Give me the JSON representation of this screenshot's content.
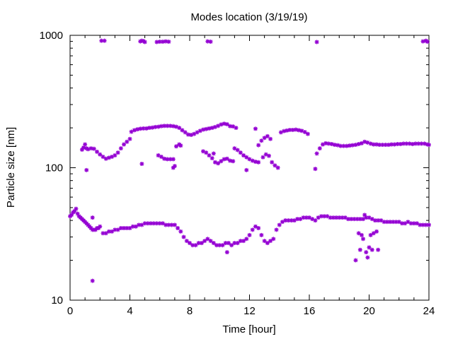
{
  "chart_data": {
    "type": "scatter",
    "title": "Modes location (3/19/19)",
    "xlabel": "Time [hour]",
    "ylabel": "Particle size [nm]",
    "xlim": [
      0,
      24
    ],
    "ylim": [
      10,
      1000
    ],
    "yscale": "log",
    "xticks": [
      0,
      4,
      8,
      12,
      16,
      20,
      24
    ],
    "yticks": [
      10,
      100,
      1000
    ],
    "xtick_labels": [
      "0",
      "4",
      "8",
      "12",
      "16",
      "20",
      "24"
    ],
    "ytick_labels": [
      "10",
      "100",
      "1000"
    ],
    "grid": false,
    "legend": "none",
    "marker_color": "#9400d3",
    "series": [
      {
        "points": [
          [
            0.0,
            43
          ],
          [
            0.1,
            44
          ],
          [
            0.2,
            46
          ],
          [
            0.3,
            47
          ],
          [
            0.4,
            49
          ],
          [
            0.5,
            45
          ],
          [
            0.6,
            43
          ],
          [
            0.7,
            42
          ],
          [
            0.8,
            41
          ],
          [
            0.9,
            40
          ],
          [
            1.0,
            39
          ],
          [
            1.1,
            38
          ],
          [
            1.2,
            37
          ],
          [
            1.3,
            36
          ],
          [
            1.4,
            35
          ],
          [
            1.5,
            34
          ],
          [
            1.6,
            34
          ],
          [
            1.7,
            34
          ],
          [
            1.8,
            35
          ],
          [
            1.9,
            35
          ],
          [
            2.0,
            36
          ],
          [
            2.2,
            32
          ],
          [
            2.4,
            32
          ],
          [
            2.6,
            33
          ],
          [
            2.8,
            33
          ],
          [
            3.0,
            34
          ],
          [
            3.2,
            34
          ],
          [
            3.4,
            35
          ],
          [
            3.6,
            35
          ],
          [
            3.8,
            35
          ],
          [
            4.0,
            35
          ],
          [
            4.2,
            36
          ],
          [
            4.4,
            36
          ],
          [
            4.6,
            37
          ],
          [
            4.8,
            37
          ],
          [
            5.0,
            38
          ],
          [
            5.2,
            38
          ],
          [
            5.4,
            38
          ],
          [
            5.6,
            38
          ],
          [
            5.8,
            38
          ],
          [
            6.0,
            38
          ],
          [
            6.2,
            38
          ],
          [
            6.4,
            37
          ],
          [
            6.6,
            37
          ],
          [
            6.8,
            37
          ],
          [
            7.0,
            37
          ],
          [
            7.2,
            35
          ],
          [
            7.4,
            33
          ],
          [
            7.6,
            30
          ],
          [
            7.8,
            28
          ],
          [
            8.0,
            27
          ],
          [
            8.2,
            26
          ],
          [
            8.4,
            26
          ],
          [
            8.6,
            27
          ],
          [
            8.8,
            27
          ],
          [
            9.0,
            28
          ],
          [
            9.2,
            29
          ],
          [
            9.4,
            28
          ],
          [
            9.6,
            27
          ],
          [
            9.8,
            26
          ],
          [
            10.0,
            26
          ],
          [
            10.2,
            26
          ],
          [
            10.4,
            27
          ],
          [
            10.6,
            27
          ],
          [
            10.8,
            26
          ],
          [
            11.0,
            27
          ],
          [
            11.2,
            27
          ],
          [
            11.4,
            28
          ],
          [
            11.6,
            28
          ],
          [
            11.8,
            29
          ],
          [
            12.0,
            31
          ],
          [
            12.2,
            34
          ],
          [
            12.4,
            36
          ],
          [
            12.6,
            35
          ],
          [
            12.8,
            31
          ],
          [
            13.0,
            28
          ],
          [
            13.2,
            27
          ],
          [
            13.4,
            28
          ],
          [
            13.6,
            29
          ],
          [
            13.8,
            34
          ],
          [
            14.0,
            37
          ],
          [
            14.2,
            39
          ],
          [
            14.4,
            40
          ],
          [
            14.6,
            40
          ],
          [
            14.8,
            40
          ],
          [
            15.0,
            40
          ],
          [
            15.2,
            41
          ],
          [
            15.4,
            41
          ],
          [
            15.6,
            42
          ],
          [
            15.8,
            42
          ],
          [
            16.0,
            42
          ],
          [
            16.2,
            41
          ],
          [
            16.4,
            40
          ],
          [
            16.6,
            42
          ],
          [
            16.8,
            43
          ],
          [
            17.0,
            43
          ],
          [
            17.2,
            43
          ],
          [
            17.4,
            42
          ],
          [
            17.6,
            42
          ],
          [
            17.8,
            42
          ],
          [
            18.0,
            42
          ],
          [
            18.2,
            42
          ],
          [
            18.4,
            42
          ],
          [
            18.6,
            41
          ],
          [
            18.8,
            41
          ],
          [
            19.0,
            41
          ],
          [
            19.2,
            41
          ],
          [
            19.4,
            41
          ],
          [
            19.6,
            41
          ],
          [
            19.8,
            42
          ],
          [
            20.0,
            42
          ],
          [
            20.2,
            41
          ],
          [
            20.4,
            40
          ],
          [
            20.6,
            40
          ],
          [
            20.8,
            40
          ],
          [
            21.0,
            39
          ],
          [
            21.2,
            39
          ],
          [
            21.4,
            39
          ],
          [
            21.6,
            39
          ],
          [
            21.8,
            39
          ],
          [
            22.0,
            39
          ],
          [
            22.2,
            38
          ],
          [
            22.4,
            38
          ],
          [
            22.6,
            39
          ],
          [
            22.8,
            38
          ],
          [
            23.0,
            38
          ],
          [
            23.2,
            38
          ],
          [
            23.4,
            37
          ],
          [
            23.6,
            37
          ],
          [
            23.8,
            37
          ],
          [
            24.0,
            37
          ],
          [
            1.5,
            14
          ],
          [
            10.5,
            23
          ],
          [
            19.7,
            44
          ],
          [
            1.5,
            42
          ],
          [
            19.1,
            20
          ],
          [
            19.3,
            32
          ],
          [
            19.4,
            24
          ],
          [
            19.5,
            31
          ],
          [
            19.6,
            29
          ],
          [
            19.8,
            23
          ],
          [
            19.9,
            21
          ],
          [
            20.0,
            25
          ],
          [
            20.2,
            24
          ],
          [
            20.3,
            32
          ],
          [
            20.5,
            33
          ],
          [
            20.6,
            24
          ],
          [
            20.1,
            31
          ],
          [
            0.8,
            137
          ],
          [
            0.9,
            142
          ],
          [
            1.0,
            150
          ],
          [
            1.1,
            140
          ],
          [
            1.2,
            138
          ],
          [
            1.4,
            140
          ],
          [
            1.6,
            139
          ],
          [
            1.8,
            132
          ],
          [
            2.0,
            126
          ],
          [
            2.2,
            121
          ],
          [
            2.4,
            117
          ],
          [
            2.6,
            119
          ],
          [
            2.8,
            121
          ],
          [
            3.0,
            124
          ],
          [
            3.2,
            130
          ],
          [
            3.4,
            140
          ],
          [
            3.6,
            150
          ],
          [
            3.8,
            157
          ],
          [
            4.0,
            165
          ],
          [
            4.1,
            187
          ],
          [
            4.3,
            192
          ],
          [
            4.5,
            195
          ],
          [
            4.7,
            197
          ],
          [
            4.9,
            198
          ],
          [
            5.1,
            198
          ],
          [
            5.3,
            200
          ],
          [
            5.5,
            201
          ],
          [
            5.7,
            203
          ],
          [
            5.9,
            204
          ],
          [
            6.1,
            206
          ],
          [
            6.3,
            207
          ],
          [
            6.5,
            207
          ],
          [
            6.7,
            207
          ],
          [
            6.9,
            206
          ],
          [
            7.1,
            204
          ],
          [
            7.3,
            200
          ],
          [
            7.5,
            192
          ],
          [
            7.7,
            185
          ],
          [
            7.9,
            178
          ],
          [
            8.1,
            177
          ],
          [
            8.3,
            180
          ],
          [
            8.5,
            185
          ],
          [
            8.7,
            190
          ],
          [
            8.9,
            194
          ],
          [
            9.1,
            196
          ],
          [
            9.3,
            198
          ],
          [
            9.5,
            200
          ],
          [
            9.7,
            203
          ],
          [
            9.9,
            207
          ],
          [
            10.1,
            212
          ],
          [
            10.3,
            215
          ],
          [
            10.5,
            213
          ],
          [
            10.7,
            206
          ],
          [
            10.9,
            205
          ],
          [
            11.1,
            200
          ],
          [
            1.1,
            96
          ],
          [
            4.8,
            107
          ],
          [
            6.9,
            100
          ],
          [
            7.0,
            103
          ],
          [
            5.9,
            124
          ],
          [
            6.1,
            121
          ],
          [
            6.3,
            117
          ],
          [
            6.5,
            116
          ],
          [
            6.7,
            116
          ],
          [
            6.9,
            116
          ],
          [
            7.1,
            145
          ],
          [
            7.3,
            150
          ],
          [
            7.4,
            147
          ],
          [
            8.9,
            133
          ],
          [
            9.1,
            130
          ],
          [
            9.3,
            124
          ],
          [
            9.5,
            118
          ],
          [
            9.6,
            128
          ],
          [
            9.7,
            110
          ],
          [
            9.9,
            108
          ],
          [
            10.1,
            112
          ],
          [
            10.3,
            116
          ],
          [
            10.5,
            117
          ],
          [
            10.7,
            113
          ],
          [
            10.9,
            112
          ],
          [
            11.0,
            140
          ],
          [
            11.2,
            136
          ],
          [
            11.4,
            130
          ],
          [
            11.6,
            124
          ],
          [
            11.8,
            120
          ],
          [
            12.0,
            116
          ],
          [
            12.2,
            113
          ],
          [
            12.4,
            111
          ],
          [
            12.6,
            110
          ],
          [
            11.8,
            96
          ],
          [
            12.4,
            197
          ],
          [
            12.6,
            148
          ],
          [
            12.8,
            160
          ],
          [
            13.0,
            168
          ],
          [
            13.2,
            173
          ],
          [
            13.4,
            165
          ],
          [
            12.9,
            120
          ],
          [
            13.1,
            126
          ],
          [
            13.3,
            123
          ],
          [
            13.5,
            110
          ],
          [
            13.7,
            104
          ],
          [
            13.9,
            100
          ],
          [
            14.1,
            185
          ],
          [
            14.3,
            189
          ],
          [
            14.5,
            191
          ],
          [
            14.7,
            193
          ],
          [
            14.9,
            193
          ],
          [
            15.1,
            194
          ],
          [
            15.3,
            192
          ],
          [
            15.5,
            190
          ],
          [
            15.7,
            186
          ],
          [
            15.9,
            180
          ],
          [
            16.4,
            98
          ],
          [
            16.5,
            128
          ],
          [
            16.7,
            140
          ],
          [
            16.9,
            150
          ],
          [
            17.1,
            153
          ],
          [
            17.3,
            152
          ],
          [
            17.5,
            151
          ],
          [
            17.7,
            149
          ],
          [
            17.9,
            148
          ],
          [
            18.1,
            146
          ],
          [
            18.3,
            146
          ],
          [
            18.5,
            146
          ],
          [
            18.7,
            147
          ],
          [
            18.9,
            148
          ],
          [
            19.1,
            149
          ],
          [
            19.3,
            151
          ],
          [
            19.5,
            153
          ],
          [
            19.7,
            157
          ],
          [
            19.9,
            155
          ],
          [
            20.1,
            152
          ],
          [
            20.3,
            150
          ],
          [
            20.5,
            150
          ],
          [
            20.7,
            149
          ],
          [
            20.9,
            149
          ],
          [
            21.1,
            149
          ],
          [
            21.3,
            149
          ],
          [
            21.5,
            150
          ],
          [
            21.7,
            150
          ],
          [
            21.9,
            151
          ],
          [
            22.1,
            151
          ],
          [
            22.3,
            152
          ],
          [
            22.5,
            152
          ],
          [
            22.7,
            152
          ],
          [
            22.9,
            151
          ],
          [
            23.1,
            152
          ],
          [
            23.3,
            152
          ],
          [
            23.5,
            152
          ],
          [
            23.7,
            152
          ],
          [
            23.9,
            150
          ],
          [
            24.0,
            149
          ],
          [
            2.1,
            910
          ],
          [
            2.3,
            910
          ],
          [
            4.7,
            900
          ],
          [
            4.8,
            910
          ],
          [
            4.9,
            905
          ],
          [
            5.0,
            890
          ],
          [
            5.8,
            890
          ],
          [
            6.0,
            895
          ],
          [
            6.2,
            895
          ],
          [
            6.4,
            900
          ],
          [
            6.6,
            895
          ],
          [
            9.2,
            900
          ],
          [
            9.4,
            895
          ],
          [
            16.5,
            890
          ],
          [
            23.6,
            900
          ],
          [
            23.8,
            910
          ],
          [
            23.9,
            895
          ]
        ]
      }
    ]
  }
}
